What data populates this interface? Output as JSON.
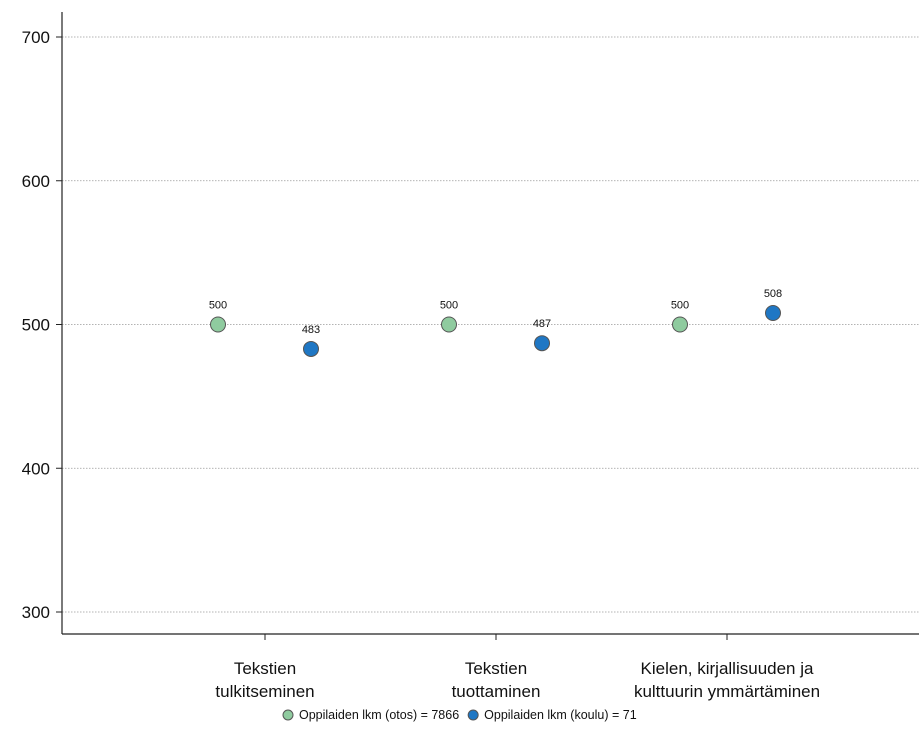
{
  "chart_data": {
    "type": "scatter",
    "categories": [
      [
        "Tekstien",
        "tulkitseminen"
      ],
      [
        "Tekstien",
        "tuottaminen"
      ],
      [
        "Kielen, kirjallisuuden ja",
        "kulttuurin ymmärtäminen"
      ]
    ],
    "series": [
      {
        "name": "Oppilaiden lkm (otos) = 7866",
        "values": [
          500,
          500,
          500
        ],
        "labels": [
          "500",
          "500",
          "500"
        ],
        "color": "#8fcb9f"
      },
      {
        "name": "Oppilaiden lkm (koulu) = 71",
        "values": [
          483,
          487,
          508
        ],
        "labels": [
          "483",
          "487",
          "508"
        ],
        "color": "#1f77c4"
      }
    ],
    "y_ticks": [
      300,
      400,
      500,
      600,
      700
    ],
    "ylim": [
      300,
      700
    ],
    "grid": true,
    "legend_position": "bottom"
  }
}
